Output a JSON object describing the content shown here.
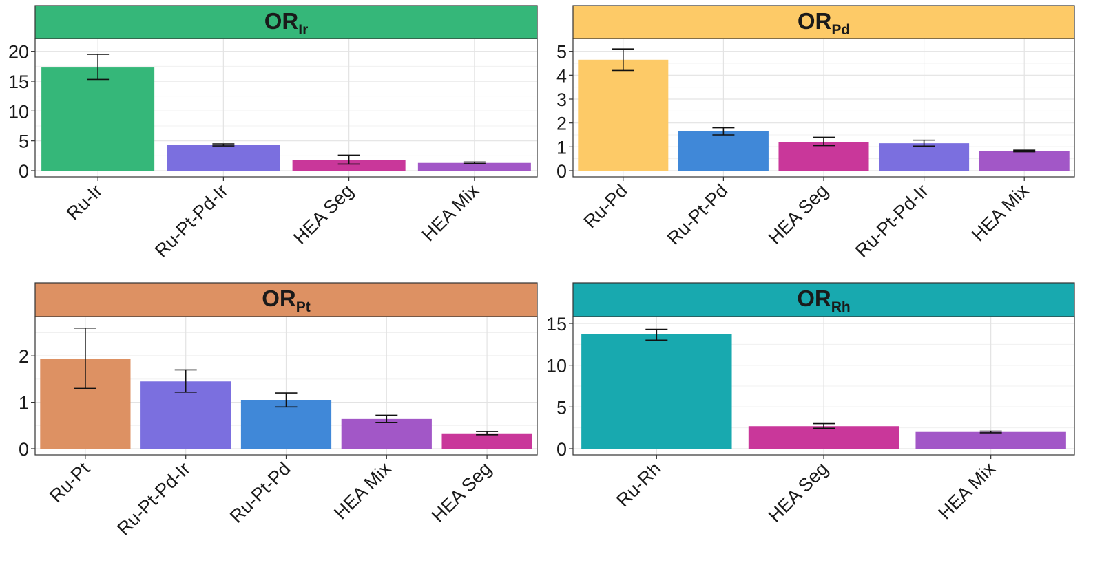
{
  "chart_data": [
    {
      "type": "bar",
      "title": "OR",
      "title_sub": "Ir",
      "strip_color": "#35B779",
      "ylim": [
        0,
        21
      ],
      "yticks": [
        0,
        5,
        10,
        15,
        20
      ],
      "categories": [
        "Ru-Ir",
        "Ru-Pt-Pd-Ir",
        "HEA Seg",
        "HEA Mix"
      ],
      "values": [
        17.3,
        4.3,
        1.8,
        1.3
      ],
      "error_low": [
        15.3,
        4.15,
        1.1,
        1.2
      ],
      "error_high": [
        19.5,
        4.5,
        2.6,
        1.45
      ],
      "colors": [
        "#35B779",
        "#7B6FDF",
        "#C9379A",
        "#A257C7"
      ]
    },
    {
      "type": "bar",
      "title": "OR",
      "title_sub": "Pd",
      "strip_color": "#FDCA67",
      "ylim": [
        0,
        5.25
      ],
      "yticks": [
        0,
        1,
        2,
        3,
        4,
        5
      ],
      "categories": [
        "Ru-Pd",
        "Ru-Pt-Pd",
        "HEA Seg",
        "Ru-Pt-Pd-Ir",
        "HEA Mix"
      ],
      "values": [
        4.65,
        1.65,
        1.2,
        1.15,
        0.82
      ],
      "error_low": [
        4.2,
        1.5,
        1.05,
        1.03,
        0.79
      ],
      "error_high": [
        5.1,
        1.8,
        1.4,
        1.28,
        0.86
      ],
      "colors": [
        "#FDCA67",
        "#4088D8",
        "#C9379A",
        "#7B6FDF",
        "#A257C7"
      ]
    },
    {
      "type": "bar",
      "title": "OR",
      "title_sub": "Pt",
      "strip_color": "#DD9163",
      "ylim": [
        0,
        2.7
      ],
      "yticks": [
        0,
        1,
        2
      ],
      "categories": [
        "Ru-Pt",
        "Ru-Pt-Pd-Ir",
        "Ru-Pt-Pd",
        "HEA Mix",
        "HEA Seg"
      ],
      "values": [
        1.93,
        1.45,
        1.04,
        0.64,
        0.33
      ],
      "error_low": [
        1.3,
        1.22,
        0.9,
        0.56,
        0.3
      ],
      "error_high": [
        2.6,
        1.7,
        1.2,
        0.72,
        0.37
      ],
      "colors": [
        "#DD9163",
        "#7B6FDF",
        "#4088D8",
        "#A257C7",
        "#C9379A"
      ]
    },
    {
      "type": "bar",
      "title": "OR",
      "title_sub": "Rh",
      "strip_color": "#18A9AF",
      "ylim": [
        0,
        15
      ],
      "yticks": [
        0,
        5,
        10,
        15
      ],
      "categories": [
        "Ru-Rh",
        "HEA Seg",
        "HEA Mix"
      ],
      "values": [
        13.7,
        2.7,
        2.0
      ],
      "error_low": [
        13.0,
        2.45,
        1.9
      ],
      "error_high": [
        14.3,
        3.0,
        2.1
      ],
      "colors": [
        "#18A9AF",
        "#C9379A",
        "#A257C7"
      ]
    }
  ]
}
